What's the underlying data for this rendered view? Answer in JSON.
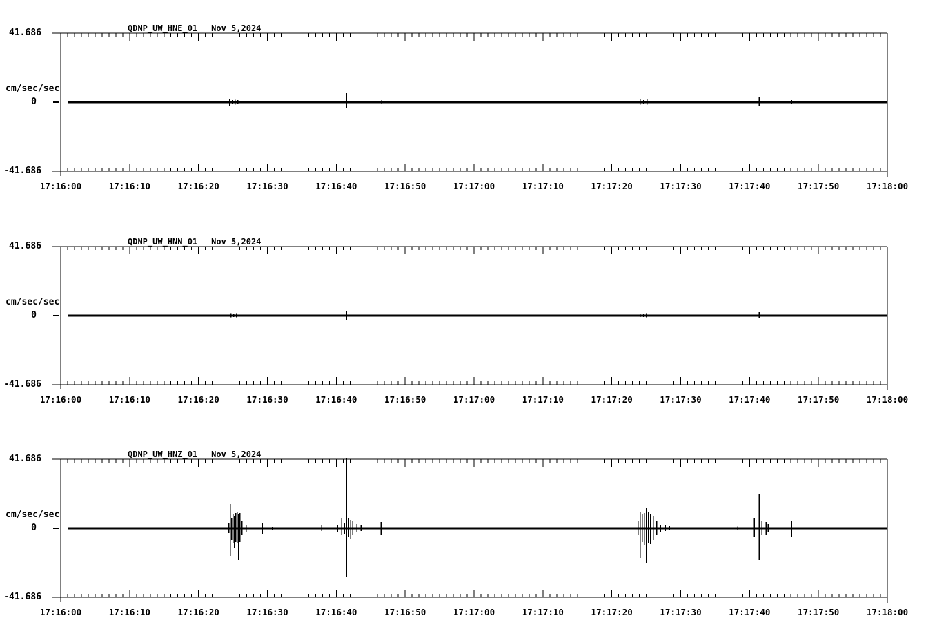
{
  "page": {
    "background": "#ffffff",
    "ink": "#000000"
  },
  "y_axis": {
    "top_label": "41.686",
    "zero_label": "0",
    "bottom_label": "-41.686",
    "units_label": "cm/sec/sec",
    "ymax": 41.686,
    "ymin": -41.686
  },
  "x_axis": {
    "tick_labels": [
      "17:16:00",
      "17:16:10",
      "17:16:20",
      "17:16:30",
      "17:16:40",
      "17:16:50",
      "17:17:00",
      "17:17:10",
      "17:17:20",
      "17:17:30",
      "17:17:40",
      "17:17:50",
      "17:18:00"
    ],
    "minor_tick_seconds": 1,
    "major_tick_seconds": 10,
    "span_seconds": 120
  },
  "chart_data": [
    {
      "type": "line",
      "title": "QDNP_UW_HNE_01",
      "date": "Nov 5,2024",
      "ylabel": "cm/sec/sec",
      "ylim": [
        -41.686,
        41.686
      ],
      "x_start": "17:16:00",
      "x_end": "17:18:00",
      "x_tick_labels": [
        "17:16:00",
        "17:16:10",
        "17:16:20",
        "17:16:30",
        "17:16:40",
        "17:16:50",
        "17:17:00",
        "17:17:10",
        "17:17:20",
        "17:17:30",
        "17:17:40",
        "17:17:50",
        "17:18:00"
      ],
      "baseline_value": 0,
      "trace_start_seconds": 1.1,
      "spike_format": [
        "seconds_after_17:16:00",
        "peak_up_cm_per_sec2",
        "peak_down_cm_per_sec2"
      ],
      "spikes": [
        [
          24.5,
          2.1,
          2.1
        ],
        [
          24.9,
          1.3,
          1.3
        ],
        [
          25.3,
          1.5,
          1.5
        ],
        [
          25.7,
          1.3,
          1.3
        ],
        [
          40.6,
          0.6,
          0.6
        ],
        [
          41.5,
          5.5,
          3.8
        ],
        [
          42.0,
          0.7,
          0.7
        ],
        [
          46.6,
          1.3,
          1.0
        ],
        [
          84.1,
          1.7,
          1.4
        ],
        [
          84.6,
          1.3,
          1.3
        ],
        [
          85.1,
          1.7,
          1.5
        ],
        [
          101.4,
          3.3,
          2.5
        ],
        [
          106.1,
          1.3,
          1.0
        ]
      ]
    },
    {
      "type": "line",
      "title": "QDNP_UW_HNN_01",
      "date": "Nov 5,2024",
      "ylabel": "cm/sec/sec",
      "ylim": [
        -41.686,
        41.686
      ],
      "x_start": "17:16:00",
      "x_end": "17:18:00",
      "x_tick_labels": [
        "17:16:00",
        "17:16:10",
        "17:16:20",
        "17:16:30",
        "17:16:40",
        "17:16:50",
        "17:17:00",
        "17:17:10",
        "17:17:20",
        "17:17:30",
        "17:17:40",
        "17:17:50",
        "17:18:00"
      ],
      "baseline_value": 0,
      "trace_start_seconds": 1.1,
      "spike_format": [
        "seconds_after_17:16:00",
        "peak_up_cm_per_sec2",
        "peak_down_cm_per_sec2"
      ],
      "spikes": [
        [
          24.7,
          1.1,
          1.1
        ],
        [
          25.1,
          0.8,
          0.8
        ],
        [
          25.5,
          1.0,
          1.0
        ],
        [
          41.5,
          2.7,
          2.7
        ],
        [
          84.1,
          0.9,
          0.9
        ],
        [
          84.6,
          0.8,
          0.8
        ],
        [
          85.0,
          1.1,
          1.1
        ],
        [
          101.4,
          2.1,
          1.7
        ]
      ]
    },
    {
      "type": "line",
      "title": "QDNP_UW_HNZ_01",
      "date": "Nov 5,2024",
      "ylabel": "cm/sec/sec",
      "ylim": [
        -41.686,
        41.686
      ],
      "x_start": "17:16:00",
      "x_end": "17:18:00",
      "x_tick_labels": [
        "17:16:00",
        "17:16:10",
        "17:16:20",
        "17:16:30",
        "17:16:40",
        "17:16:50",
        "17:17:00",
        "17:17:10",
        "17:17:20",
        "17:17:30",
        "17:17:40",
        "17:17:50",
        "17:18:00"
      ],
      "baseline_value": 0,
      "trace_start_seconds": 1.1,
      "spike_format": [
        "seconds_after_17:16:00",
        "peak_up_cm_per_sec2",
        "peak_down_cm_per_sec2"
      ],
      "spikes": [
        [
          23.4,
          0.7,
          0.7
        ],
        [
          24.4,
          3.0,
          3.0
        ],
        [
          24.6,
          14.6,
          16.7
        ],
        [
          24.8,
          6.3,
          7.1
        ],
        [
          25.0,
          8.3,
          9.2
        ],
        [
          25.2,
          7.1,
          12.1
        ],
        [
          25.4,
          9.2,
          8.3
        ],
        [
          25.6,
          10.0,
          9.2
        ],
        [
          25.8,
          8.3,
          19.2
        ],
        [
          26.0,
          9.2,
          8.3
        ],
        [
          26.3,
          4.2,
          4.2
        ],
        [
          26.9,
          2.1,
          2.1
        ],
        [
          27.5,
          1.7,
          1.7
        ],
        [
          28.2,
          1.5,
          1.5
        ],
        [
          29.3,
          3.3,
          3.3
        ],
        [
          30.7,
          0.8,
          0.8
        ],
        [
          37.9,
          1.7,
          1.7
        ],
        [
          40.2,
          2.1,
          2.1
        ],
        [
          40.8,
          6.3,
          4.2
        ],
        [
          41.2,
          3.3,
          3.3
        ],
        [
          41.5,
          42.5,
          29.6
        ],
        [
          41.8,
          6.3,
          5.4
        ],
        [
          42.1,
          5.0,
          6.3
        ],
        [
          42.4,
          4.2,
          4.2
        ],
        [
          43.0,
          2.5,
          2.5
        ],
        [
          43.6,
          1.7,
          1.7
        ],
        [
          46.5,
          3.8,
          4.2
        ],
        [
          83.8,
          4.2,
          4.2
        ],
        [
          84.1,
          10.0,
          17.9
        ],
        [
          84.4,
          8.3,
          8.3
        ],
        [
          84.7,
          9.2,
          10.0
        ],
        [
          85.0,
          12.1,
          20.8
        ],
        [
          85.3,
          10.0,
          9.2
        ],
        [
          85.6,
          8.8,
          9.6
        ],
        [
          86.0,
          7.1,
          7.1
        ],
        [
          86.5,
          4.2,
          4.2
        ],
        [
          87.1,
          2.1,
          2.1
        ],
        [
          87.8,
          1.7,
          1.7
        ],
        [
          88.4,
          1.3,
          1.3
        ],
        [
          98.3,
          1.0,
          1.0
        ],
        [
          100.7,
          6.3,
          5.0
        ],
        [
          101.4,
          20.8,
          19.2
        ],
        [
          101.8,
          4.2,
          4.2
        ],
        [
          102.4,
          3.8,
          4.2
        ],
        [
          102.7,
          2.5,
          2.5
        ],
        [
          106.1,
          4.2,
          5.0
        ]
      ]
    }
  ]
}
